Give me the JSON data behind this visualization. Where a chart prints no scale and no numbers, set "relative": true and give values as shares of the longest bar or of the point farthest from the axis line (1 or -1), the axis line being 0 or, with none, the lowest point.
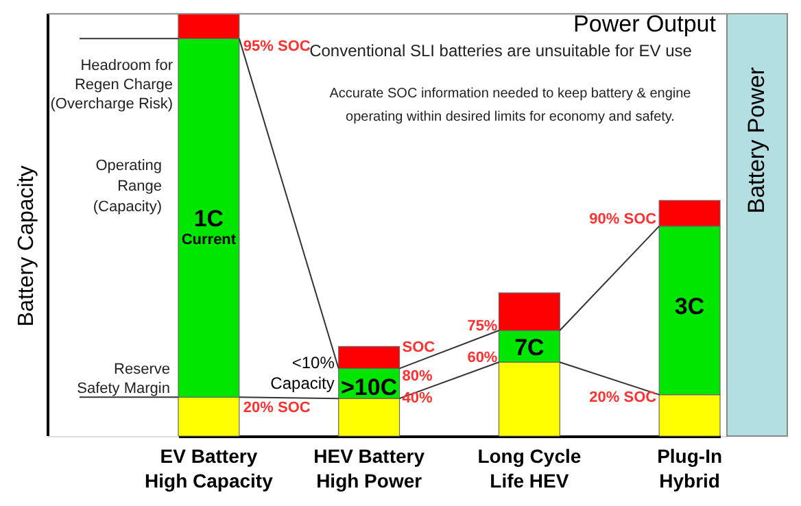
{
  "chart_data": {
    "type": "bar",
    "stacked": true,
    "relative": true,
    "title": "Power Output",
    "ylabel": "Battery Capacity",
    "y2label": "Battery Power",
    "categories": [
      "EV Battery\nHigh Capacity",
      "HEV Battery\nHigh Power",
      "Long Cycle\nLife HEV",
      "Plug-In\nHybrid"
    ],
    "series": [
      {
        "color": "#ffff00",
        "values": [
          0.092,
          0.089,
          0.175,
          0.098
        ]
      },
      {
        "color": "#00e600",
        "values": [
          0.849,
          0.071,
          0.075,
          0.399
        ]
      },
      {
        "color": "#ff0000",
        "values": [
          0.059,
          0.052,
          0.089,
          0.061
        ]
      }
    ],
    "annotations": [
      {
        "text": "Headroom for\nRegen Charge\n(Overcharge Risk)",
        "x": "EV Battery\nHigh Capacity",
        "y": 0.941
      },
      "Operating\nRange\n(Capacity)",
      {
        "text": "Reserve\nSafety Margin",
        "x": "EV Battery\nHigh Capacity",
        "y": 0.092
      },
      "1C\nCurrent",
      {
        "text": "95% SOC",
        "x": "EV Battery\nHigh Capacity",
        "y": 0.941
      },
      {
        "text": "20% SOC",
        "x": "EV Battery\nHigh Capacity",
        "y": 0.092
      },
      {
        "text": "<10%\nCapacity",
        "x": "HEV Battery\nHigh Power",
        "y": 0.16
      },
      ">10C",
      {
        "text": "SOC",
        "x": "HEV Battery\nHigh Power",
        "y": 0.21
      },
      {
        "text": "80%",
        "x": "HEV Battery\nHigh Power",
        "y": 0.16
      },
      {
        "text": "40%",
        "x": "HEV Battery\nHigh Power",
        "y": 0.089
      },
      {
        "text": "75%",
        "x": "Long Cycle\nLife HEV",
        "y": 0.25
      },
      {
        "text": "60%",
        "x": "Long Cycle\nLife HEV",
        "y": 0.175
      },
      "7C",
      {
        "text": "90% SOC",
        "x": "Plug-In\nHybrid",
        "y": 0.497
      },
      {
        "text": "20% SOC",
        "x": "Plug-In\nHybrid",
        "y": 0.098
      },
      "3C",
      "Conventional SLI batteries are unsuitable for EV use",
      "Accurate SOC information needed to keep battery & engine\noperating within desired limits for economy and safety."
    ]
  }
}
